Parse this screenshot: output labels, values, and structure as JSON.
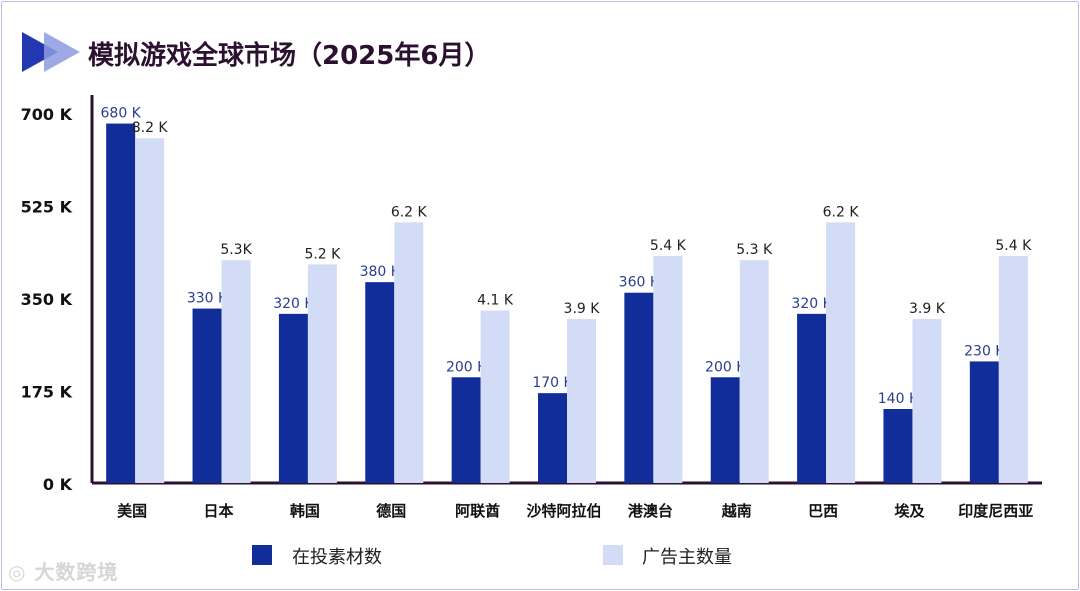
{
  "chart_data": {
    "type": "bar",
    "title": "模拟游戏全球市场（2025年6月）",
    "categories": [
      "美国",
      "日本",
      "韩国",
      "德国",
      "阿联酋",
      "沙特阿拉伯",
      "港澳台",
      "越南",
      "巴西",
      "埃及",
      "印度尼西亚"
    ],
    "series": [
      {
        "name": "在投素材数",
        "values": [
          680,
          330,
          320,
          380,
          200,
          170,
          360,
          200,
          320,
          140,
          230
        ],
        "labels": [
          "680 K",
          "330 K",
          "320 K",
          "380 K",
          "200 K",
          "170 K",
          "360 K",
          "200 K",
          "320 K",
          "140 K",
          "230 K"
        ],
        "color": "#112d9a",
        "label_color": "#2b3d8f"
      },
      {
        "name": "广告主数量",
        "values": [
          8.2,
          5.3,
          5.2,
          6.2,
          4.1,
          3.9,
          5.4,
          5.3,
          6.2,
          3.9,
          5.4
        ],
        "labels": [
          "8.2 K",
          "5.3K",
          "5.2 K",
          "6.2 K",
          "4.1 K",
          "3.9 K",
          "5.4 K",
          "5.3 K",
          "6.2 K",
          "3.9 K",
          "5.4 K"
        ],
        "color": "#d3dcf6",
        "label_color": "#222222"
      }
    ],
    "yticks": [
      "0 K",
      "175 K",
      "350 K",
      "525 K",
      "700 K"
    ],
    "ytick_values": [
      0,
      175,
      350,
      525,
      700
    ],
    "ylim": [
      0,
      700
    ],
    "secondary_ylim": [
      0,
      8.8
    ],
    "legend_position": "bottom",
    "xlabel": "",
    "ylabel": ""
  },
  "watermark": "大数跨境",
  "colors": {
    "axis": "#2b1030",
    "title": "#2b1030",
    "logo_dark": "#2338b0",
    "logo_light": "#8d9be0"
  }
}
